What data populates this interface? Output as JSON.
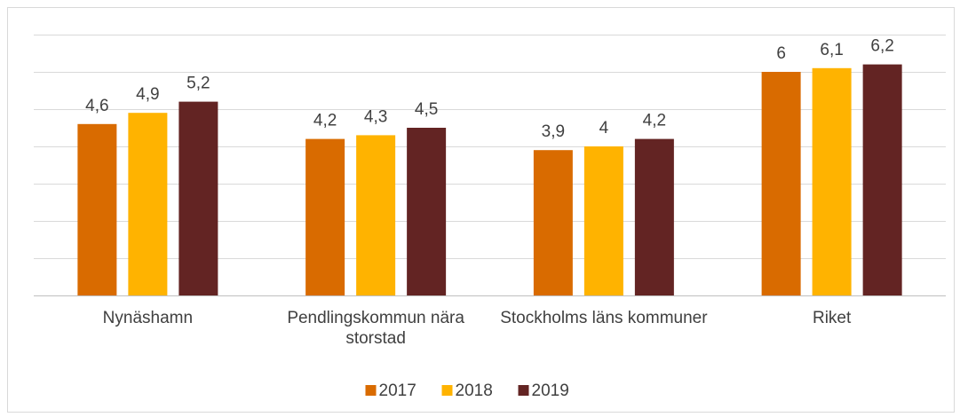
{
  "chart_data": {
    "type": "bar",
    "categories": [
      "Nynäshamn",
      "Pendlingskommun nära storstad",
      "Stockholms läns kommuner",
      "Riket"
    ],
    "series": [
      {
        "name": "2017",
        "color": "#d96b00",
        "values": [
          4.6,
          4.2,
          3.9,
          6
        ],
        "value_labels": [
          "4,6",
          "4,2",
          "3,9",
          "6"
        ]
      },
      {
        "name": "2018",
        "color": "#ffb300",
        "values": [
          4.9,
          4.3,
          4,
          6.1
        ],
        "value_labels": [
          "4,9",
          "4,3",
          "4",
          "6,1"
        ]
      },
      {
        "name": "2019",
        "color": "#632423",
        "values": [
          5.2,
          4.5,
          4.2,
          6.2
        ],
        "value_labels": [
          "5,2",
          "4,5",
          "4,2",
          "6,2"
        ]
      }
    ],
    "ylim": [
      0,
      7
    ],
    "yticks": [
      0,
      1,
      2,
      3,
      4,
      5,
      6,
      7
    ],
    "grid": true,
    "legend": "bottom"
  }
}
